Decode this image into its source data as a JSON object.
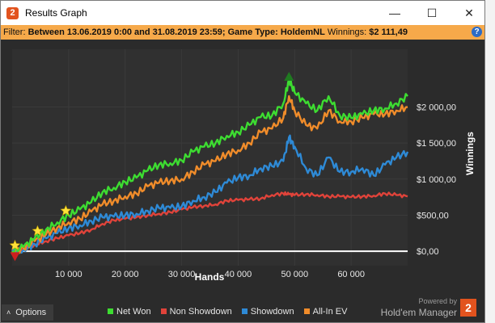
{
  "window": {
    "title": "Results Graph",
    "app_icon_glyph": "2",
    "controls": {
      "minimize": "—",
      "maximize": "☐",
      "close": "✕"
    }
  },
  "filter": {
    "label": "Filter:",
    "value": "Between 13.06.2019 0:00 and 31.08.2019 23:59; Game Type: HoldemNL",
    "winnings_label": "Winnings:",
    "winnings_value": "$2 111,49",
    "help_glyph": "?"
  },
  "colors": {
    "net_won": "#3ddc31",
    "non_showdown": "#e0433a",
    "showdown": "#2e8ad6",
    "all_in_ev": "#f08c2a",
    "filter_bar": "#f6a94a",
    "star": "#ffe13a",
    "peak_marker": "#1f7a20",
    "low_marker": "#cc1f1f"
  },
  "chart_data": {
    "type": "line",
    "xlabel": "Hands",
    "ylabel": "Winnings",
    "xlim": [
      0,
      70000
    ],
    "ylim": [
      -200,
      2800
    ],
    "x_ticks": [
      10000,
      20000,
      30000,
      40000,
      50000,
      60000
    ],
    "x_tick_labels": [
      "10 000",
      "20 000",
      "30 000",
      "40 000",
      "50 000",
      "60 000"
    ],
    "y_ticks": [
      0,
      500,
      1000,
      1500,
      2000
    ],
    "y_tick_labels": [
      "$0,00",
      "$500,00",
      "$1 000,00",
      "$1 500,00",
      "$2 000,00"
    ],
    "x": [
      0,
      2000,
      4000,
      6000,
      8000,
      10000,
      12000,
      14000,
      16000,
      18000,
      20000,
      22000,
      24000,
      26000,
      28000,
      30000,
      32000,
      34000,
      36000,
      38000,
      40000,
      42000,
      44000,
      46000,
      48000,
      49000,
      50000,
      52000,
      54000,
      56000,
      58000,
      60000,
      62000,
      64000,
      66000,
      68000,
      70000
    ],
    "series": [
      {
        "name": "Net Won",
        "color_key": "net_won",
        "values": [
          0,
          60,
          180,
          300,
          400,
          500,
          580,
          680,
          820,
          880,
          960,
          1020,
          1120,
          1200,
          1220,
          1260,
          1380,
          1450,
          1500,
          1600,
          1650,
          1750,
          1860,
          1880,
          2050,
          2380,
          2200,
          2050,
          1950,
          2150,
          1880,
          1850,
          1900,
          1950,
          1980,
          2050,
          2150
        ]
      },
      {
        "name": "Non Showdown",
        "color_key": "non_showdown",
        "values": [
          0,
          30,
          90,
          140,
          180,
          220,
          250,
          300,
          380,
          430,
          450,
          470,
          500,
          520,
          540,
          580,
          610,
          630,
          650,
          700,
          710,
          720,
          730,
          780,
          800,
          790,
          780,
          790,
          780,
          760,
          760,
          750,
          760,
          770,
          800,
          780,
          760
        ]
      },
      {
        "name": "Showdown",
        "color_key": "showdown",
        "values": [
          0,
          20,
          100,
          180,
          250,
          320,
          360,
          420,
          470,
          480,
          500,
          520,
          560,
          600,
          600,
          620,
          700,
          750,
          820,
          950,
          1020,
          1050,
          1150,
          1180,
          1250,
          1580,
          1450,
          1150,
          1050,
          1300,
          1100,
          1100,
          1150,
          1050,
          1200,
          1300,
          1380
        ]
      },
      {
        "name": "All-In EV",
        "color_key": "all_in_ev",
        "values": [
          0,
          40,
          140,
          230,
          330,
          400,
          450,
          550,
          650,
          700,
          760,
          800,
          900,
          950,
          980,
          1000,
          1100,
          1200,
          1250,
          1350,
          1400,
          1500,
          1650,
          1700,
          1850,
          2150,
          1950,
          1750,
          1700,
          1950,
          1800,
          1800,
          1850,
          1900,
          1900,
          1950,
          2000
        ]
      }
    ],
    "annotations": [
      {
        "kind": "star",
        "x": 500,
        "y": 80
      },
      {
        "kind": "star",
        "x": 4500,
        "y": 280
      },
      {
        "kind": "star",
        "x": 9500,
        "y": 560
      },
      {
        "kind": "peak-triangle",
        "x": 49000,
        "y": 2420
      },
      {
        "kind": "low-triangle",
        "x": 500,
        "y": -70
      }
    ]
  },
  "bottom": {
    "options_label": "Options",
    "options_caret": "˄",
    "legend": [
      {
        "label": "Net Won",
        "color_key": "net_won"
      },
      {
        "label": "Non Showdown",
        "color_key": "non_showdown"
      },
      {
        "label": "Showdown",
        "color_key": "showdown"
      },
      {
        "label": "All-In EV",
        "color_key": "all_in_ev"
      }
    ],
    "powered_by": "Powered by",
    "brand_name": "Hold'em Manager",
    "brand_logo_glyph": "2"
  }
}
